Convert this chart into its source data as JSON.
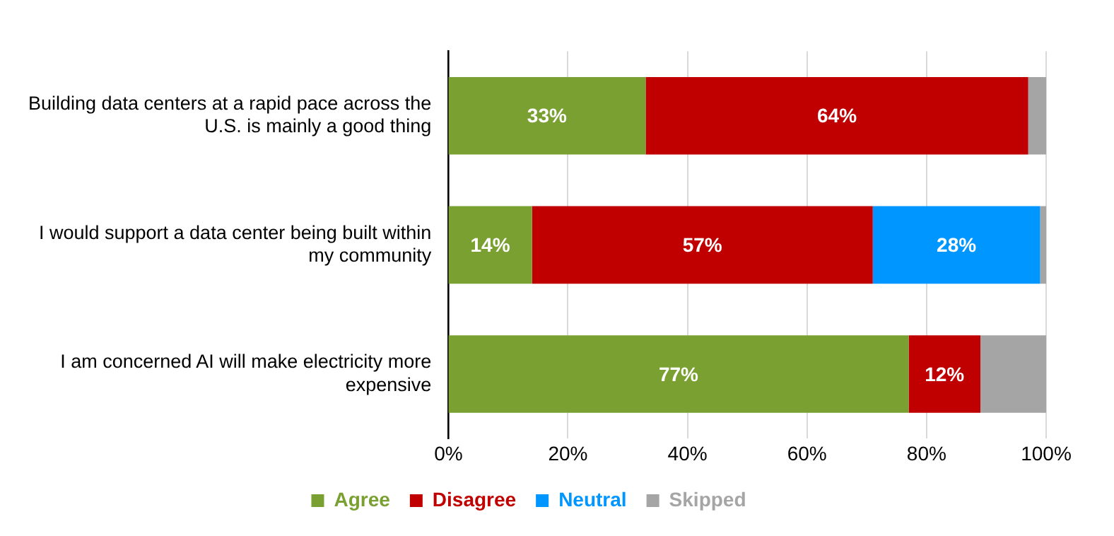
{
  "chart_data": {
    "type": "bar",
    "orientation": "horizontal",
    "stacked": true,
    "categories": [
      "Building data centers at a rapid pace across the U.S. is mainly a good thing",
      "I would support a data center being built within my community",
      "I am concerned AI will make electricity more expensive"
    ],
    "series": [
      {
        "name": "Agree",
        "color": "#7aa032",
        "values": [
          33,
          14,
          77
        ],
        "value_labels": [
          "33%",
          "14%",
          "77%"
        ]
      },
      {
        "name": "Disagree",
        "color": "#c00000",
        "values": [
          64,
          57,
          12
        ],
        "value_labels": [
          "64%",
          "57%",
          "12%"
        ]
      },
      {
        "name": "Neutral",
        "color": "#0096ff",
        "values": [
          null,
          28,
          null
        ],
        "value_labels": [
          null,
          "28%",
          null
        ]
      },
      {
        "name": "Skipped",
        "color": "#a5a5a5",
        "values": [
          3,
          1,
          11
        ],
        "value_labels": [
          null,
          null,
          null
        ]
      }
    ],
    "xlim": [
      0,
      100
    ],
    "xticks": [
      {
        "value": 0,
        "label": "0%"
      },
      {
        "value": 20,
        "label": "20%"
      },
      {
        "value": 40,
        "label": "40%"
      },
      {
        "value": 60,
        "label": "60%"
      },
      {
        "value": 80,
        "label": "80%"
      },
      {
        "value": 100,
        "label": "100%"
      }
    ],
    "grid": "x",
    "legend": "bottom"
  }
}
